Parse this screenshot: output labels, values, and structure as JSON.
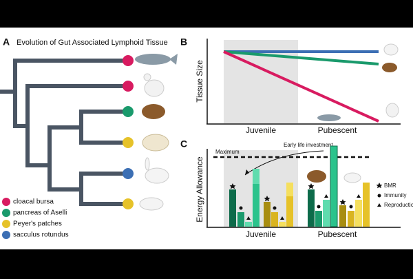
{
  "panel_a": {
    "letter": "A",
    "title": "Evolution of Gut Associated Lymphoid Tissue",
    "legend": [
      "cloacal bursa",
      "pancreas of Aselli",
      "Peyer's patches",
      "sacculus rotundus"
    ]
  },
  "panel_b": {
    "letter": "B",
    "y_label": "Tissue Size",
    "x_labels": [
      "Juvenile",
      "Pubescent"
    ]
  },
  "panel_c": {
    "letter": "C",
    "y_label": "Energy Allowance",
    "x_labels": [
      "Juvenile",
      "Pubescent"
    ],
    "annotations": [
      "Maximum",
      "Early life investment"
    ],
    "legend": [
      "BMR",
      "Immunity",
      "Reproduction"
    ]
  }
}
